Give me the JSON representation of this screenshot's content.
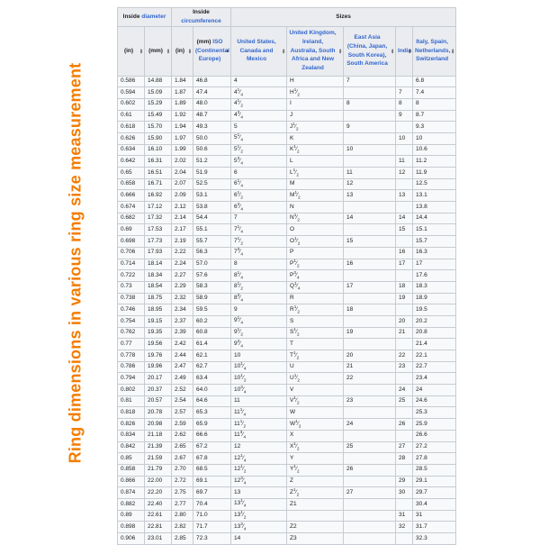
{
  "title": "Ring dimensions in various ring size measurement",
  "colors": {
    "accent_orange": "#f47c00",
    "link_blue": "#3366cc",
    "header_bg": "#eaecf0",
    "row_bg": "#f8f9fa",
    "border": "#c6ccd2"
  },
  "table": {
    "header_groups": [
      {
        "text": "Inside ",
        "link": "diameter",
        "span": 2
      },
      {
        "text": "Inside ",
        "link": "circumference",
        "span": 2
      },
      {
        "text": "Sizes",
        "link": "",
        "span": 5
      }
    ],
    "columns": [
      {
        "text": "(in)",
        "link": "",
        "sort": "both"
      },
      {
        "text": "(mm)",
        "link": "",
        "sort": "both"
      },
      {
        "text": "(in)",
        "link": "",
        "sort": "both"
      },
      {
        "text": "(mm) ",
        "link": "ISO (Continental Europe)",
        "sort": "asc"
      },
      {
        "text": "",
        "link": "United States, Canada and Mexico",
        "sort": "both"
      },
      {
        "text": "",
        "link": "United Kingdom, Ireland, Australia, South Africa and New Zealand",
        "sort": "both"
      },
      {
        "text": "",
        "link": "East Asia (China, Japan, South Korea), South America",
        "sort": "both"
      },
      {
        "text": "",
        "link": "India",
        "sort": "both"
      },
      {
        "text": "",
        "link": "Italy, Spain, Netherlands, Switzerland",
        "sort": "both"
      }
    ],
    "rows": [
      [
        "0.586",
        "14.88",
        "1.84",
        "46.8",
        "4",
        "H",
        "7",
        "",
        "6.8"
      ],
      [
        "0.594",
        "15.09",
        "1.87",
        "47.4",
        "4 1/4",
        "H 1/2",
        "",
        "7",
        "7.4"
      ],
      [
        "0.602",
        "15.29",
        "1.89",
        "48.0",
        "4 1/2",
        "I",
        "8",
        "8",
        "8"
      ],
      [
        "0.61",
        "15.49",
        "1.92",
        "48.7",
        "4 3/4",
        "J",
        "",
        "9",
        "8.7"
      ],
      [
        "0.618",
        "15.70",
        "1.94",
        "49.3",
        "5",
        "J 1/2",
        "9",
        "",
        "9.3"
      ],
      [
        "0.626",
        "15.90",
        "1.97",
        "50.0",
        "5 1/4",
        "K",
        "",
        "10",
        "10"
      ],
      [
        "0.634",
        "16.10",
        "1.99",
        "50.6",
        "5 1/2",
        "K 1/2",
        "10",
        "",
        "10.6"
      ],
      [
        "0.642",
        "16.31",
        "2.02",
        "51.2",
        "5 3/4",
        "L",
        "",
        "11",
        "11.2"
      ],
      [
        "0.65",
        "16.51",
        "2.04",
        "51.9",
        "6",
        "L 1/2",
        "11",
        "12",
        "11.9"
      ],
      [
        "0.658",
        "16.71",
        "2.07",
        "52.5",
        "6 1/4",
        "M",
        "12",
        "",
        "12.5"
      ],
      [
        "0.666",
        "16.92",
        "2.09",
        "53.1",
        "6 1/2",
        "M 1/2",
        "13",
        "13",
        "13.1"
      ],
      [
        "0.674",
        "17.12",
        "2.12",
        "53.8",
        "6 3/4",
        "N",
        "",
        "",
        "13.8"
      ],
      [
        "0.682",
        "17.32",
        "2.14",
        "54.4",
        "7",
        "N 1/2",
        "14",
        "14",
        "14.4"
      ],
      [
        "0.69",
        "17.53",
        "2.17",
        "55.1",
        "7 1/4",
        "O",
        "",
        "15",
        "15.1"
      ],
      [
        "0.698",
        "17.73",
        "2.19",
        "55.7",
        "7 1/2",
        "O 1/2",
        "15",
        "",
        "15.7"
      ],
      [
        "0.706",
        "17.93",
        "2.22",
        "56.3",
        "7 3/4",
        "P",
        "",
        "16",
        "16.3"
      ],
      [
        "0.714",
        "18.14",
        "2.24",
        "57.0",
        "8",
        "P 1/2",
        "16",
        "17",
        "17"
      ],
      [
        "0.722",
        "18.34",
        "2.27",
        "57.6",
        "8 1/4",
        "P 3/4",
        "",
        "",
        "17.6"
      ],
      [
        "0.73",
        "18.54",
        "2.29",
        "58.3",
        "8 1/2",
        "Q 1/4",
        "17",
        "18",
        "18.3"
      ],
      [
        "0.738",
        "18.75",
        "2.32",
        "58.9",
        "8 3/4",
        "R",
        "",
        "19",
        "18.9"
      ],
      [
        "0.746",
        "18.95",
        "2.34",
        "59.5",
        "9",
        "R 1/2",
        "18",
        "",
        "19.5"
      ],
      [
        "0.754",
        "19.15",
        "2.37",
        "60.2",
        "9 1/4",
        "S",
        "",
        "20",
        "20.2"
      ],
      [
        "0.762",
        "19.35",
        "2.39",
        "60.8",
        "9 1/2",
        "S 1/2",
        "19",
        "21",
        "20.8"
      ],
      [
        "0.77",
        "19.56",
        "2.42",
        "61.4",
        "9 3/4",
        "T",
        "",
        "",
        "21.4"
      ],
      [
        "0.778",
        "19.76",
        "2.44",
        "62.1",
        "10",
        "T 1/2",
        "20",
        "22",
        "22.1"
      ],
      [
        "0.786",
        "19.96",
        "2.47",
        "62.7",
        "10 1/4",
        "U",
        "21",
        "23",
        "22.7"
      ],
      [
        "0.794",
        "20.17",
        "2.49",
        "63.4",
        "10 1/2",
        "U 1/2",
        "22",
        "",
        "23.4"
      ],
      [
        "0.802",
        "20.37",
        "2.52",
        "64.0",
        "10 3/4",
        "V",
        "",
        "24",
        "24"
      ],
      [
        "0.81",
        "20.57",
        "2.54",
        "64.6",
        "11",
        "V 1/2",
        "23",
        "25",
        "24.6"
      ],
      [
        "0.818",
        "20.78",
        "2.57",
        "65.3",
        "11 1/4",
        "W",
        "",
        "",
        "25.3"
      ],
      [
        "0.826",
        "20.98",
        "2.59",
        "65.9",
        "11 1/2",
        "W 1/2",
        "24",
        "26",
        "25.9"
      ],
      [
        "0.834",
        "21.18",
        "2.62",
        "66.6",
        "11 3/4",
        "X",
        "",
        "",
        "26.6"
      ],
      [
        "0.842",
        "21.39",
        "2.65",
        "67.2",
        "12",
        "X 1/2",
        "25",
        "27",
        "27.2"
      ],
      [
        "0.85",
        "21.59",
        "2.67",
        "67.8",
        "12 1/4",
        "Y",
        "",
        "28",
        "27.8"
      ],
      [
        "0.858",
        "21.79",
        "2.70",
        "68.5",
        "12 1/2",
        "Y 1/2",
        "26",
        "",
        "28.5"
      ],
      [
        "0.866",
        "22.00",
        "2.72",
        "69.1",
        "12 3/4",
        "Z",
        "",
        "29",
        "29.1"
      ],
      [
        "0.874",
        "22.20",
        "2.75",
        "69.7",
        "13",
        "Z 1/2",
        "27",
        "30",
        "29.7"
      ],
      [
        "0.882",
        "22.40",
        "2.77",
        "70.4",
        "13 1/4",
        "Z1",
        "",
        "",
        "30.4"
      ],
      [
        "0.89",
        "22.61",
        "2.80",
        "71.0",
        "13 1/2",
        "",
        "",
        "31",
        "31"
      ],
      [
        "0.898",
        "22.81",
        "2.82",
        "71.7",
        "13 3/4",
        "Z2",
        "",
        "32",
        "31.7"
      ],
      [
        "0.906",
        "23.01",
        "2.85",
        "72.3",
        "14",
        "Z3",
        "",
        "",
        "32.3"
      ]
    ]
  }
}
